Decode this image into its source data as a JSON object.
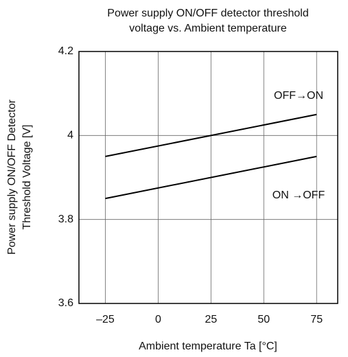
{
  "chart_data": {
    "type": "line",
    "title": [
      "Power supply ON/OFF detector threshold",
      "voltage vs. Ambient temperature"
    ],
    "x_label": "Ambient temperature Ta [°C]",
    "y_label": [
      "Power supply ON/OFF Detector",
      "Threshold Voltage [V]"
    ],
    "x": [
      -25,
      75
    ],
    "series": [
      {
        "name": "OFF→ON",
        "color": "#000000",
        "values": [
          3.95,
          4.05
        ]
      },
      {
        "name": "ON →OFF",
        "color": "#000000",
        "values": [
          3.85,
          3.95
        ]
      }
    ],
    "xlim": [
      -37.5,
      85
    ],
    "xticks": [
      {
        "value": -25,
        "label": "–25"
      },
      0,
      25,
      50,
      75
    ],
    "ylim": [
      3.6,
      4.2
    ],
    "yticks": [
      3.6,
      {
        "value": 3.8,
        "label": "3.8"
      },
      4,
      {
        "value": 4.2,
        "label": "4.2"
      }
    ],
    "grid": true
  }
}
